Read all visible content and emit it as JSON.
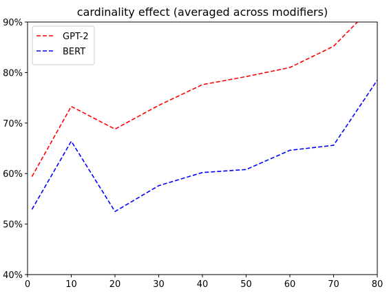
{
  "chart_data": {
    "type": "line",
    "title": "cardinality effect (averaged across modifiers)",
    "xlabel": "",
    "ylabel": "",
    "xlim": [
      0,
      80
    ],
    "ylim": [
      0.4,
      0.9
    ],
    "xticks": [
      0,
      10,
      20,
      30,
      40,
      50,
      60,
      70,
      80
    ],
    "yticks": [
      0.4,
      0.5,
      0.6,
      0.7,
      0.8,
      0.9
    ],
    "ytick_labels": [
      "40%",
      "50%",
      "60%",
      "70%",
      "80%",
      "90%"
    ],
    "grid": false,
    "legend_position": "top-left",
    "series": [
      {
        "name": "GPT-2",
        "color": "#ff0000",
        "style": "dashed",
        "x": [
          1,
          10,
          20,
          30,
          40,
          50,
          60,
          70,
          80
        ],
        "y": [
          0.594,
          0.733,
          0.688,
          0.735,
          0.776,
          0.792,
          0.81,
          0.852,
          0.94
        ]
      },
      {
        "name": "BERT",
        "color": "#0000ff",
        "style": "dashed",
        "x": [
          1,
          10,
          20,
          30,
          40,
          50,
          60,
          70,
          80
        ],
        "y": [
          0.529,
          0.664,
          0.525,
          0.576,
          0.602,
          0.608,
          0.646,
          0.656,
          0.785
        ]
      }
    ]
  }
}
